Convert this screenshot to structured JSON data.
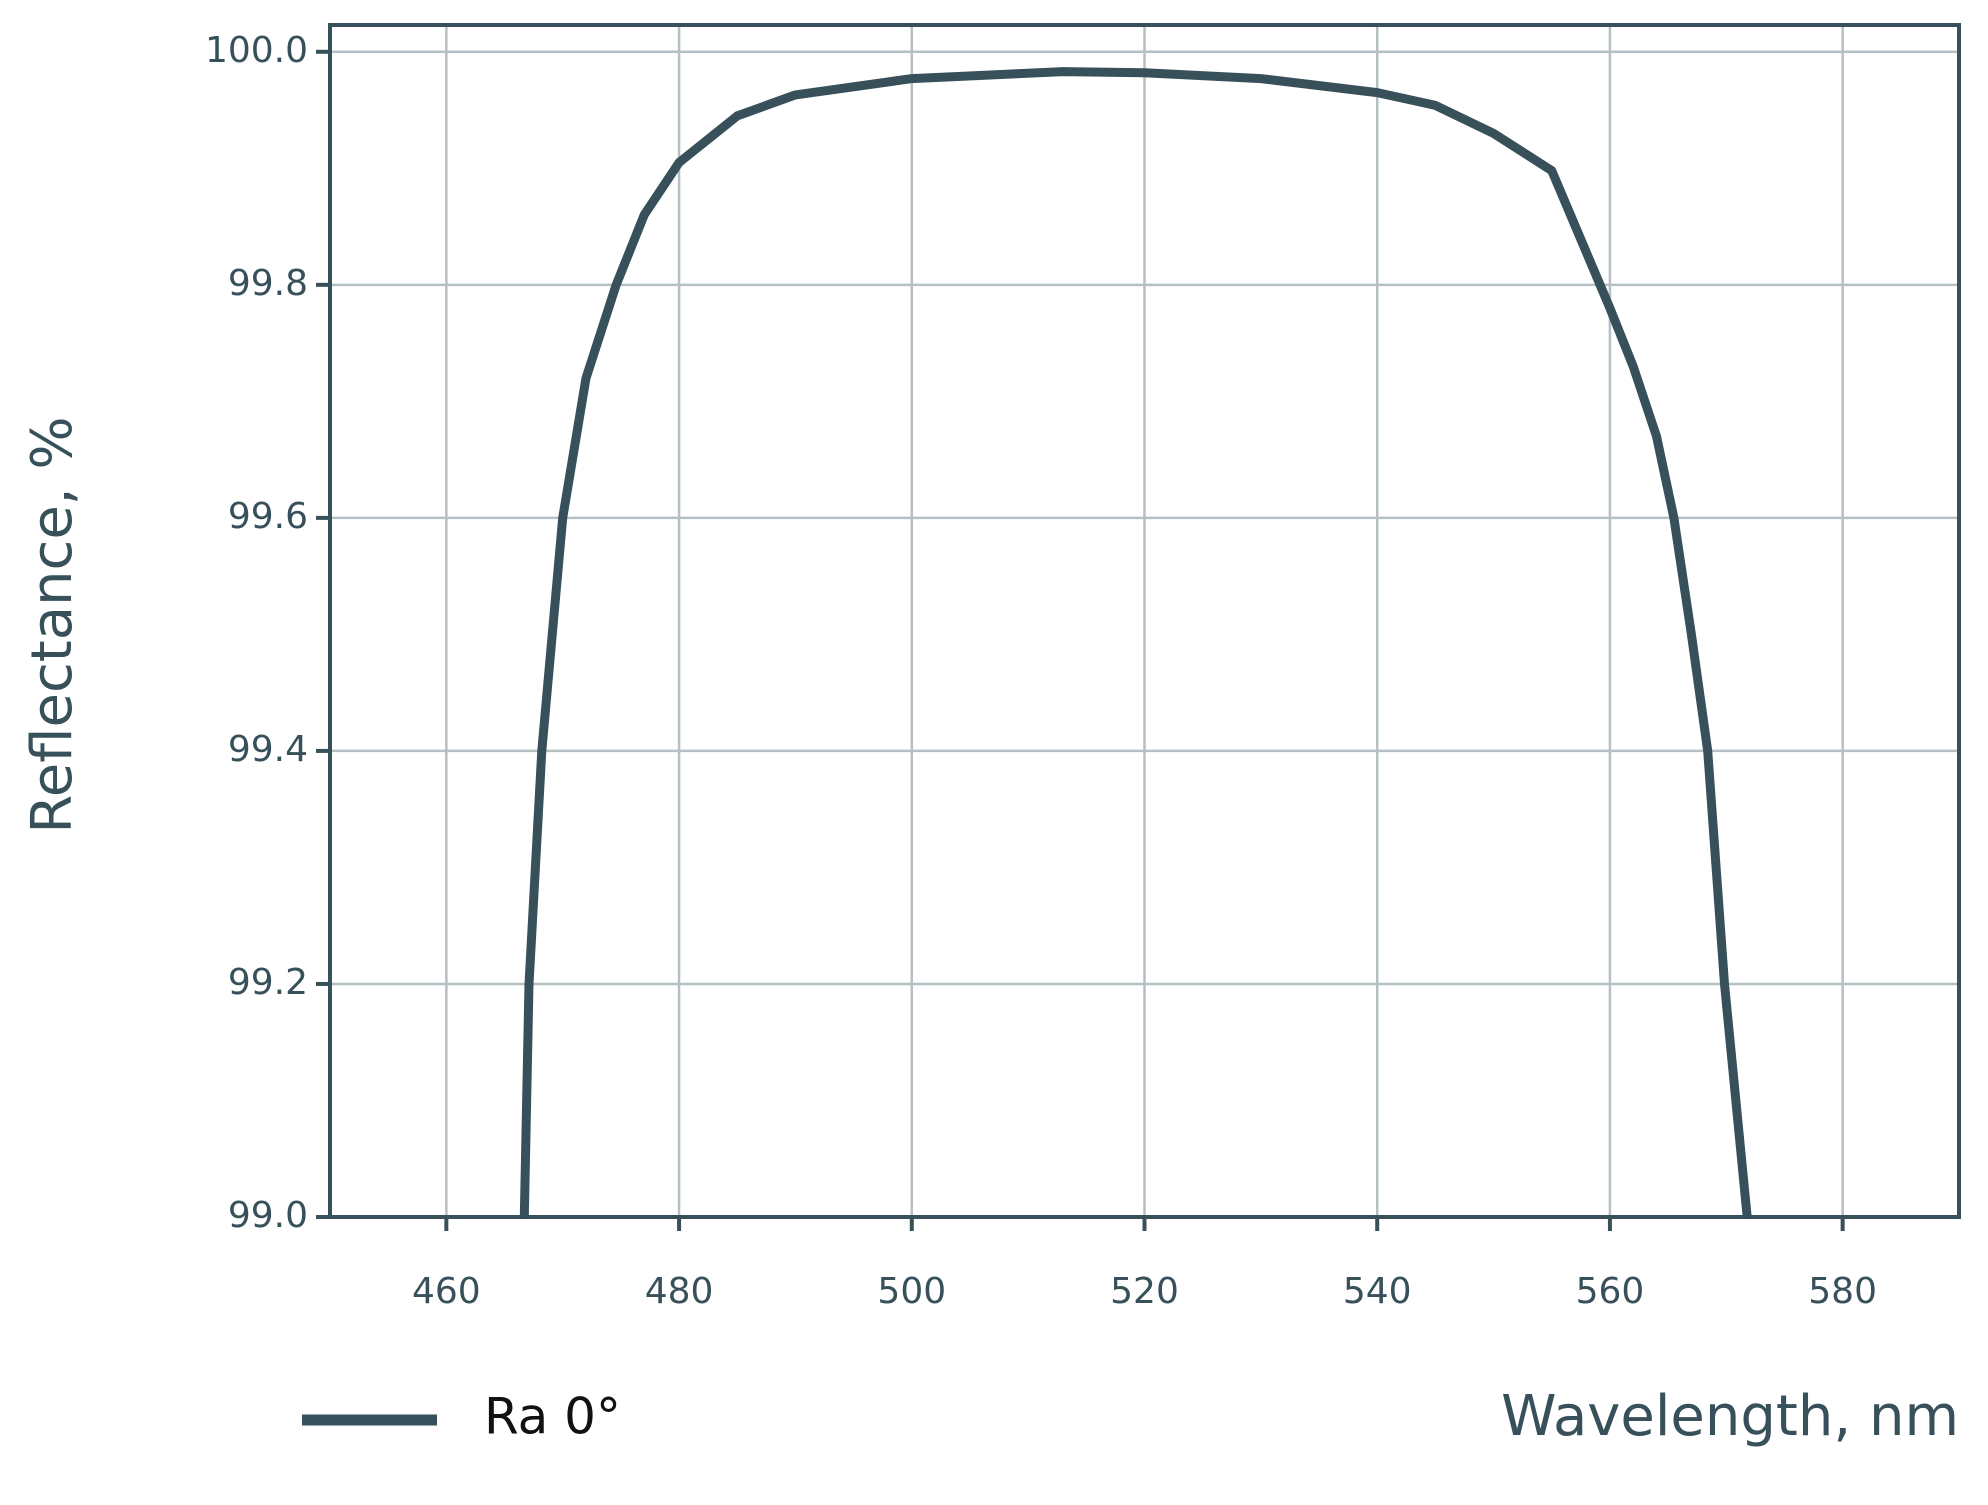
{
  "chart_data": {
    "type": "line",
    "x_label": "Wavelength, nm",
    "y_label": "Reflectance, %",
    "xlim": [
      450,
      590
    ],
    "xticks": [
      460,
      480,
      500,
      520,
      540,
      560,
      580
    ],
    "ylim": [
      99.0,
      100.023
    ],
    "yticks": [
      {
        "value": 99.0,
        "label": "99.0"
      },
      99.2,
      99.4,
      99.6,
      99.8,
      {
        "value": 100.0,
        "label": "100.0"
      }
    ],
    "grid": true,
    "legend": "bottom-left",
    "x": [
      466.7,
      467.1,
      468.2,
      470,
      472,
      474.6,
      477,
      480,
      485,
      490,
      500,
      513,
      520,
      530,
      540,
      545,
      550,
      555,
      560,
      562,
      564,
      565.5,
      567,
      568.4,
      569.85,
      571.8
    ],
    "series": [
      {
        "name": "Ra 0°",
        "color": "#37505a",
        "values": [
          99.0,
          99.2,
          99.4,
          99.6,
          99.72,
          99.8,
          99.86,
          99.905,
          99.945,
          99.963,
          99.977,
          99.983,
          99.982,
          99.977,
          99.965,
          99.954,
          99.93,
          99.898,
          99.78,
          99.73,
          99.67,
          99.6,
          99.5,
          99.4,
          99.2,
          99.0
        ]
      }
    ]
  }
}
